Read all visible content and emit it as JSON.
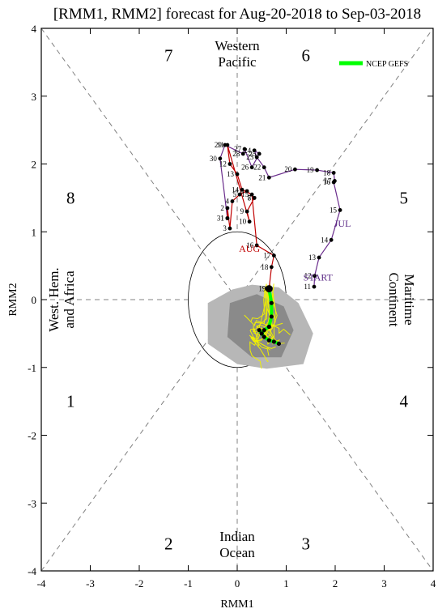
{
  "chart_data": {
    "type": "line",
    "title": "[RMM1, RMM2] forecast for Aug-20-2018 to Sep-03-2018",
    "xlabel": "RMM1",
    "ylabel": "RMM2",
    "xlim": [
      -4,
      4
    ],
    "ylim": [
      -4,
      4
    ],
    "x_ticks": [
      "-4",
      "-3",
      "-2",
      "-1",
      "0",
      "1",
      "2",
      "3",
      "4"
    ],
    "y_ticks": [
      "-4",
      "-3",
      "-2",
      "-1",
      "0",
      "1",
      "2",
      "3",
      "4"
    ],
    "phase_numbers": [
      {
        "label": "1",
        "x": -3.4,
        "y": -1.5
      },
      {
        "label": "2",
        "x": -1.4,
        "y": -3.6
      },
      {
        "label": "3",
        "x": 1.4,
        "y": -3.6
      },
      {
        "label": "4",
        "x": 3.4,
        "y": -1.5
      },
      {
        "label": "5",
        "x": 3.4,
        "y": 1.5
      },
      {
        "label": "6",
        "x": 1.4,
        "y": 3.6
      },
      {
        "label": "7",
        "x": -1.4,
        "y": 3.6
      },
      {
        "label": "8",
        "x": -3.4,
        "y": 1.5
      }
    ],
    "regions": {
      "top": [
        "Western",
        "Pacific"
      ],
      "bottom": [
        "Indian",
        "Ocean"
      ],
      "left": [
        "West. Hem.",
        "and Africa"
      ],
      "right": [
        "Maritime",
        "Continent"
      ]
    },
    "legend": {
      "label": "NCEP GEFS",
      "color": "#00ff00",
      "position": "top-right"
    },
    "month_labels": [
      {
        "text": "START",
        "x": 1.65,
        "y": 0.33,
        "color": "#5b2a86"
      },
      {
        "text": "JUL",
        "x": 2.15,
        "y": 1.12,
        "color": "#5b2a86"
      },
      {
        "text": "AUG",
        "x": 0.25,
        "y": 0.75,
        "color": "#c00000"
      }
    ],
    "series": [
      {
        "name": "July (purple)",
        "color": "#6a2c8c",
        "days": [
          "11",
          "12",
          "13",
          "14",
          "15",
          "16",
          "17",
          "18",
          "19",
          "20",
          "21",
          "22",
          "23",
          "24",
          "25",
          "26",
          "27",
          "28",
          "29",
          "30",
          "31"
        ],
        "x": [
          1.57,
          1.58,
          1.67,
          1.92,
          2.1,
          1.97,
          1.99,
          1.97,
          1.63,
          1.18,
          0.65,
          0.55,
          0.4,
          0.35,
          0.45,
          0.3,
          0.15,
          0.12,
          -0.25,
          -0.35,
          -0.2
        ],
        "y": [
          0.19,
          0.35,
          0.62,
          0.88,
          1.32,
          1.73,
          1.75,
          1.87,
          1.91,
          1.92,
          1.8,
          1.95,
          2.1,
          2.2,
          2.15,
          1.95,
          2.22,
          2.15,
          2.28,
          2.08,
          1.2
        ]
      },
      {
        "name": "August (red)",
        "color": "#c00000",
        "days": [
          "1",
          "2",
          "3",
          "4",
          "5",
          "6",
          "7",
          "8",
          "9",
          "10",
          "11",
          "12",
          "13",
          "14",
          "15",
          "16",
          "17",
          "18",
          "19"
        ],
        "x": [
          -0.2,
          -0.2,
          -0.15,
          -0.1,
          0.05,
          0.2,
          0.35,
          0.35,
          0.2,
          0.25,
          -0.2,
          -0.15,
          0.0,
          0.1,
          0.3,
          0.4,
          0.75,
          0.7,
          0.65
        ],
        "y": [
          1.2,
          1.35,
          1.05,
          1.45,
          1.55,
          1.6,
          1.5,
          1.5,
          1.3,
          1.15,
          2.28,
          2.0,
          1.85,
          1.62,
          1.55,
          0.8,
          0.65,
          0.48,
          0.16
        ]
      },
      {
        "name": "NCEP GEFS ensemble mean",
        "color": "#00ff00",
        "x": [
          0.65,
          0.7,
          0.7,
          0.65,
          0.55,
          0.5,
          0.45,
          0.55,
          0.65,
          0.75,
          0.85
        ],
        "y": [
          0.16,
          -0.05,
          -0.25,
          -0.4,
          -0.45,
          -0.5,
          -0.45,
          -0.55,
          -0.6,
          -0.62,
          -0.65
        ]
      }
    ],
    "ensemble_members_color": "#f0f000",
    "spread_outer_color": "#b7b7b7",
    "spread_inner_color": "#8a8a8a"
  }
}
